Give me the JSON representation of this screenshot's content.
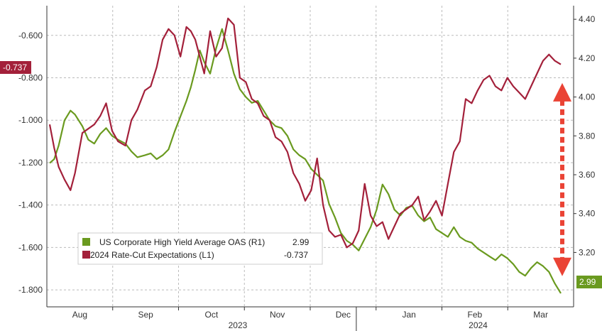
{
  "chart_data": {
    "type": "line",
    "title": "",
    "xlabel": "",
    "grid": true,
    "legend_position": "bottom-left",
    "x_ticks": [
      "Aug",
      "Sep",
      "Oct",
      "Nov",
      "Dec",
      "Jan",
      "Feb",
      "Mar"
    ],
    "x_years": [
      "2023",
      "2024"
    ],
    "left_axis": {
      "ticks": [
        "-0.600",
        "-0.800",
        "-1.000",
        "-1.200",
        "-1.400",
        "-1.600",
        "-1.800"
      ],
      "tick_values": [
        -0.6,
        -0.8,
        -1.0,
        -1.2,
        -1.4,
        -1.6,
        -1.8
      ],
      "ylim": [
        -1.88,
        -0.46
      ]
    },
    "right_axis": {
      "ticks": [
        "4.40",
        "4.20",
        "4.00",
        "3.80",
        "3.60",
        "3.40",
        "3.20"
      ],
      "tick_values": [
        4.4,
        4.2,
        4.0,
        3.8,
        3.6,
        3.4,
        3.2
      ],
      "ylim": [
        2.92,
        4.47
      ]
    },
    "series": [
      {
        "name": "US Corporate High Yield Average OAS (R1)",
        "last_value": "2.99",
        "axis": "right",
        "color": "#6a9a1f",
        "x": [
          0,
          3,
          6,
          10,
          14,
          17,
          22,
          26,
          30,
          34,
          38,
          42,
          46,
          51,
          55,
          59,
          64,
          68,
          72,
          76,
          80,
          84,
          88,
          92,
          95,
          98,
          101,
          104,
          108,
          112,
          116,
          120,
          124,
          128,
          132,
          136,
          140,
          144,
          148,
          152,
          156,
          160,
          164,
          168,
          172,
          176,
          180,
          184,
          188,
          192,
          196,
          200,
          204,
          208,
          212,
          216,
          220,
          224,
          228,
          232,
          236,
          240,
          244,
          248,
          252,
          256,
          260,
          264,
          268,
          272,
          276,
          280,
          284,
          288,
          292,
          296,
          300,
          304,
          308,
          312,
          316,
          320,
          324,
          328,
          332,
          336,
          340,
          344
        ],
        "values": [
          3.66,
          3.68,
          3.75,
          3.88,
          3.93,
          3.91,
          3.85,
          3.78,
          3.76,
          3.81,
          3.84,
          3.8,
          3.78,
          3.76,
          3.72,
          3.69,
          3.7,
          3.71,
          3.68,
          3.7,
          3.73,
          3.82,
          3.9,
          3.98,
          4.05,
          4.14,
          4.24,
          4.18,
          4.12,
          4.25,
          4.35,
          4.24,
          4.12,
          4.04,
          4.0,
          3.97,
          3.98,
          3.93,
          3.88,
          3.85,
          3.84,
          3.8,
          3.73,
          3.7,
          3.68,
          3.63,
          3.6,
          3.57,
          3.45,
          3.38,
          3.3,
          3.26,
          3.24,
          3.21,
          3.27,
          3.33,
          3.42,
          3.55,
          3.5,
          3.42,
          3.39,
          3.43,
          3.44,
          3.39,
          3.36,
          3.38,
          3.32,
          3.3,
          3.28,
          3.33,
          3.28,
          3.26,
          3.25,
          3.22,
          3.2,
          3.18,
          3.16,
          3.19,
          3.17,
          3.14,
          3.1,
          3.08,
          3.12,
          3.15,
          3.13,
          3.1,
          3.04,
          2.99
        ]
      },
      {
        "name": "2024 Rate-Cut Expectations (L1)",
        "last_value": "-0.737",
        "axis": "left",
        "color": "#a3203a",
        "x": [
          0,
          3,
          6,
          10,
          14,
          17,
          22,
          26,
          30,
          34,
          38,
          42,
          46,
          51,
          55,
          59,
          64,
          68,
          72,
          76,
          80,
          84,
          88,
          92,
          95,
          98,
          101,
          104,
          108,
          112,
          116,
          120,
          124,
          128,
          132,
          136,
          140,
          144,
          148,
          152,
          156,
          160,
          164,
          168,
          172,
          176,
          180,
          184,
          188,
          192,
          196,
          200,
          204,
          208,
          212,
          216,
          220,
          224,
          228,
          232,
          236,
          240,
          244,
          248,
          252,
          256,
          260,
          264,
          268,
          272,
          276,
          280,
          284,
          288,
          292,
          296,
          300,
          304,
          308,
          312,
          316,
          320,
          324,
          328,
          332,
          336,
          340,
          344
        ],
        "values": [
          -1.02,
          -1.13,
          -1.22,
          -1.28,
          -1.33,
          -1.25,
          -1.06,
          -1.04,
          -1.02,
          -0.98,
          -0.92,
          -1.05,
          -1.1,
          -1.12,
          -1.0,
          -0.95,
          -0.86,
          -0.84,
          -0.75,
          -0.62,
          -0.57,
          -0.6,
          -0.7,
          -0.56,
          -0.58,
          -0.62,
          -0.7,
          -0.78,
          -0.58,
          -0.7,
          -0.66,
          -0.52,
          -0.55,
          -0.8,
          -0.82,
          -0.9,
          -0.92,
          -0.98,
          -1.0,
          -1.08,
          -1.1,
          -1.15,
          -1.25,
          -1.3,
          -1.38,
          -1.33,
          -1.18,
          -1.4,
          -1.52,
          -1.55,
          -1.54,
          -1.6,
          -1.58,
          -1.52,
          -1.3,
          -1.45,
          -1.5,
          -1.48,
          -1.56,
          -1.5,
          -1.44,
          -1.42,
          -1.4,
          -1.36,
          -1.47,
          -1.43,
          -1.38,
          -1.45,
          -1.3,
          -1.15,
          -1.1,
          -0.9,
          -0.92,
          -0.86,
          -0.81,
          -0.79,
          -0.84,
          -0.86,
          -0.8,
          -0.84,
          -0.87,
          -0.9,
          -0.84,
          -0.78,
          -0.72,
          -0.69,
          -0.72,
          -0.737
        ]
      }
    ],
    "annotations": [
      {
        "type": "double-arrow",
        "axis": "right",
        "from": 4.05,
        "to": 3.1,
        "color": "#ea4335"
      }
    ]
  },
  "tags": {
    "left": "-0.737",
    "right": "2.99"
  },
  "legend": {
    "items": [
      {
        "label": "US Corporate High Yield Average OAS (R1)",
        "value": "2.99",
        "color": "#6a9a1f"
      },
      {
        "label": "2024 Rate-Cut Expectations (L1)",
        "value": "-0.737",
        "color": "#a3203a"
      }
    ]
  }
}
